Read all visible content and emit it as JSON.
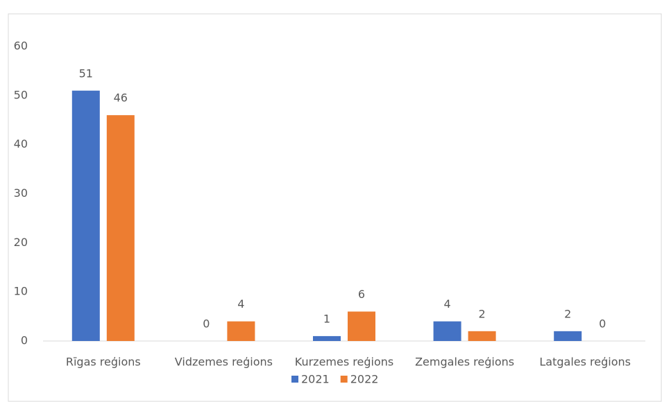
{
  "chart_data": {
    "type": "bar",
    "categories": [
      "Rīgas reģions",
      "Vidzemes reģions",
      "Kurzemes reģions",
      "Zemgales reģions",
      "Latgales reģions"
    ],
    "series": [
      {
        "name": "2021",
        "color": "#4472c4",
        "values": [
          51,
          0,
          1,
          4,
          2
        ]
      },
      {
        "name": "2022",
        "color": "#ed7d31",
        "values": [
          46,
          4,
          6,
          2,
          0
        ]
      }
    ],
    "ylim": [
      0,
      60
    ],
    "yticks": [
      0,
      10,
      20,
      30,
      40,
      50,
      60
    ],
    "grid": false,
    "legend": "bottom"
  }
}
